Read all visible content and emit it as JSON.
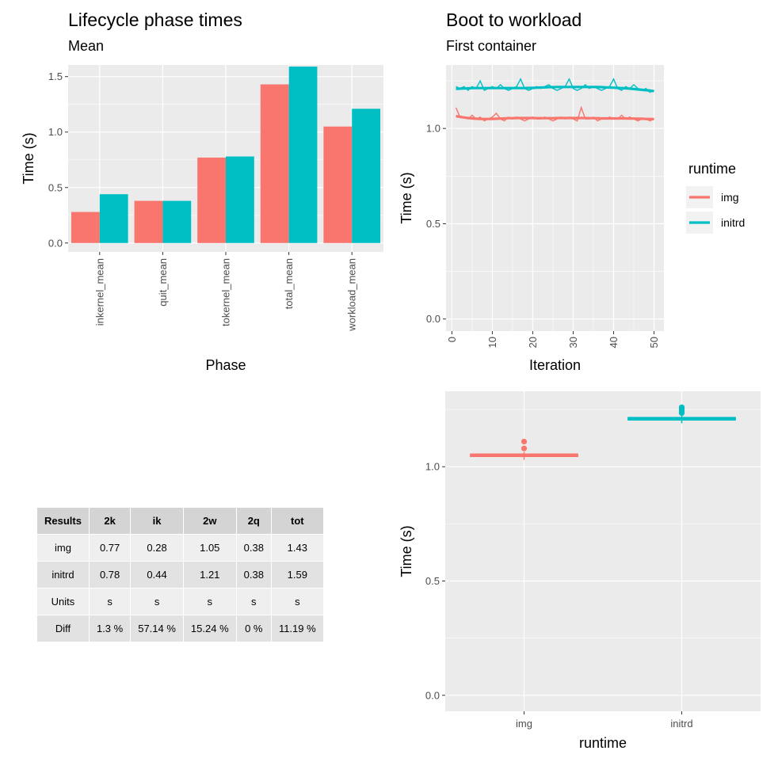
{
  "colors": {
    "img": "#F8766D",
    "initrd": "#00BFC4",
    "panel": "#EBEBEB",
    "grid": "#FFFFFF"
  },
  "chart_data": [
    {
      "type": "bar",
      "title": "Lifecycle phase times",
      "subtitle": "Mean",
      "xlabel": "Phase",
      "ylabel": "Time (s)",
      "categories": [
        "inkernel_mean",
        "quit_mean",
        "tokernel_mean",
        "total_mean",
        "workload_mean"
      ],
      "series": [
        {
          "name": "img",
          "values": [
            0.28,
            0.38,
            0.77,
            1.43,
            1.05
          ]
        },
        {
          "name": "initrd",
          "values": [
            0.44,
            0.38,
            0.78,
            1.59,
            1.21
          ]
        }
      ],
      "ylim": [
        0,
        1.6
      ],
      "yticks": [
        0.0,
        0.5,
        1.0,
        1.5
      ],
      "ytick_labels": [
        "0.0",
        "0.5",
        "1.0",
        "1.5"
      ],
      "grid": true
    },
    {
      "type": "line",
      "title": "Boot to workload",
      "subtitle": "First container",
      "xlabel": "Iteration",
      "ylabel": "Time (s)",
      "xlim": [
        1,
        50
      ],
      "ylim": [
        0,
        1.27
      ],
      "xticks": [
        0,
        10,
        20,
        30,
        40,
        50
      ],
      "xtick_labels": [
        "0",
        "10",
        "20",
        "30",
        "40",
        "50"
      ],
      "yticks": [
        0.0,
        0.5,
        1.0
      ],
      "ytick_labels": [
        "0.0",
        "0.5",
        "1.0"
      ],
      "legend": {
        "title": "runtime",
        "position": "right",
        "entries": [
          "img",
          "initrd"
        ]
      },
      "x": [
        1,
        2,
        3,
        4,
        5,
        6,
        7,
        8,
        9,
        10,
        11,
        12,
        13,
        14,
        15,
        16,
        17,
        18,
        19,
        20,
        21,
        22,
        23,
        24,
        25,
        26,
        27,
        28,
        29,
        30,
        31,
        32,
        33,
        34,
        35,
        36,
        37,
        38,
        39,
        40,
        41,
        42,
        43,
        44,
        45,
        46,
        47,
        48,
        49,
        50
      ],
      "series": [
        {
          "name": "img",
          "values": [
            1.11,
            1.06,
            1.06,
            1.05,
            1.07,
            1.05,
            1.06,
            1.04,
            1.05,
            1.06,
            1.08,
            1.05,
            1.04,
            1.06,
            1.05,
            1.06,
            1.05,
            1.04,
            1.05,
            1.06,
            1.05,
            1.05,
            1.06,
            1.05,
            1.04,
            1.05,
            1.06,
            1.05,
            1.06,
            1.05,
            1.04,
            1.11,
            1.05,
            1.05,
            1.06,
            1.04,
            1.05,
            1.05,
            1.06,
            1.05,
            1.05,
            1.07,
            1.05,
            1.06,
            1.05,
            1.04,
            1.05,
            1.05,
            1.04,
            1.05
          ],
          "trend": [
            1.065,
            1.061,
            1.058,
            1.055,
            1.053,
            1.051,
            1.05,
            1.05,
            1.05,
            1.05,
            1.051,
            1.052,
            1.053,
            1.054,
            1.054,
            1.055,
            1.055,
            1.055,
            1.055,
            1.055,
            1.054,
            1.054,
            1.054,
            1.054,
            1.054,
            1.055,
            1.055,
            1.055,
            1.055,
            1.055,
            1.055,
            1.055,
            1.055,
            1.054,
            1.054,
            1.054,
            1.053,
            1.053,
            1.053,
            1.053,
            1.053,
            1.053,
            1.053,
            1.052,
            1.052,
            1.051,
            1.051,
            1.05,
            1.05,
            1.049
          ]
        },
        {
          "name": "initrd",
          "values": [
            1.22,
            1.21,
            1.22,
            1.2,
            1.22,
            1.21,
            1.25,
            1.2,
            1.21,
            1.22,
            1.21,
            1.23,
            1.21,
            1.2,
            1.21,
            1.22,
            1.26,
            1.21,
            1.2,
            1.21,
            1.22,
            1.21,
            1.22,
            1.23,
            1.21,
            1.2,
            1.21,
            1.22,
            1.26,
            1.21,
            1.2,
            1.21,
            1.23,
            1.21,
            1.22,
            1.21,
            1.2,
            1.21,
            1.22,
            1.26,
            1.21,
            1.2,
            1.22,
            1.21,
            1.23,
            1.21,
            1.2,
            1.21,
            1.19,
            1.2
          ],
          "trend": [
            1.208,
            1.209,
            1.21,
            1.211,
            1.212,
            1.212,
            1.212,
            1.212,
            1.212,
            1.212,
            1.212,
            1.212,
            1.212,
            1.212,
            1.212,
            1.212,
            1.212,
            1.212,
            1.213,
            1.213,
            1.214,
            1.215,
            1.216,
            1.217,
            1.217,
            1.218,
            1.218,
            1.218,
            1.218,
            1.218,
            1.218,
            1.218,
            1.218,
            1.218,
            1.218,
            1.218,
            1.217,
            1.216,
            1.215,
            1.214,
            1.213,
            1.212,
            1.211,
            1.209,
            1.207,
            1.205,
            1.203,
            1.201,
            1.199,
            1.196
          ]
        }
      ],
      "grid": true
    },
    {
      "type": "box",
      "xlabel": "runtime",
      "ylabel": "Time (s)",
      "categories": [
        "img",
        "initrd"
      ],
      "ylim": [
        -0.03,
        1.3
      ],
      "yticks": [
        0.0,
        0.5,
        1.0
      ],
      "ytick_labels": [
        "0.0",
        "0.5",
        "1.0"
      ],
      "boxes": [
        {
          "name": "img",
          "min": 1.03,
          "q1": 1.045,
          "median": 1.05,
          "q3": 1.055,
          "max": 1.065,
          "outliers": [
            1.11,
            1.08
          ]
        },
        {
          "name": "initrd",
          "min": 1.19,
          "q1": 1.205,
          "median": 1.21,
          "q3": 1.215,
          "max": 1.225,
          "outliers": [
            1.26,
            1.255,
            1.25,
            1.245,
            1.24,
            1.235
          ]
        }
      ],
      "grid": true
    },
    {
      "type": "table",
      "headers": [
        "Results",
        "2k",
        "ik",
        "2w",
        "2q",
        "tot"
      ],
      "rows": [
        [
          "img",
          "0.77",
          "0.28",
          "1.05",
          "0.38",
          "1.43"
        ],
        [
          "initrd",
          "0.78",
          "0.44",
          "1.21",
          "0.38",
          "1.59"
        ],
        [
          "Units",
          "s",
          "s",
          "s",
          "s",
          "s"
        ],
        [
          "Diff",
          "1.3 %",
          "57.14 %",
          "15.24 %",
          "0 %",
          "11.19 %"
        ]
      ]
    }
  ]
}
